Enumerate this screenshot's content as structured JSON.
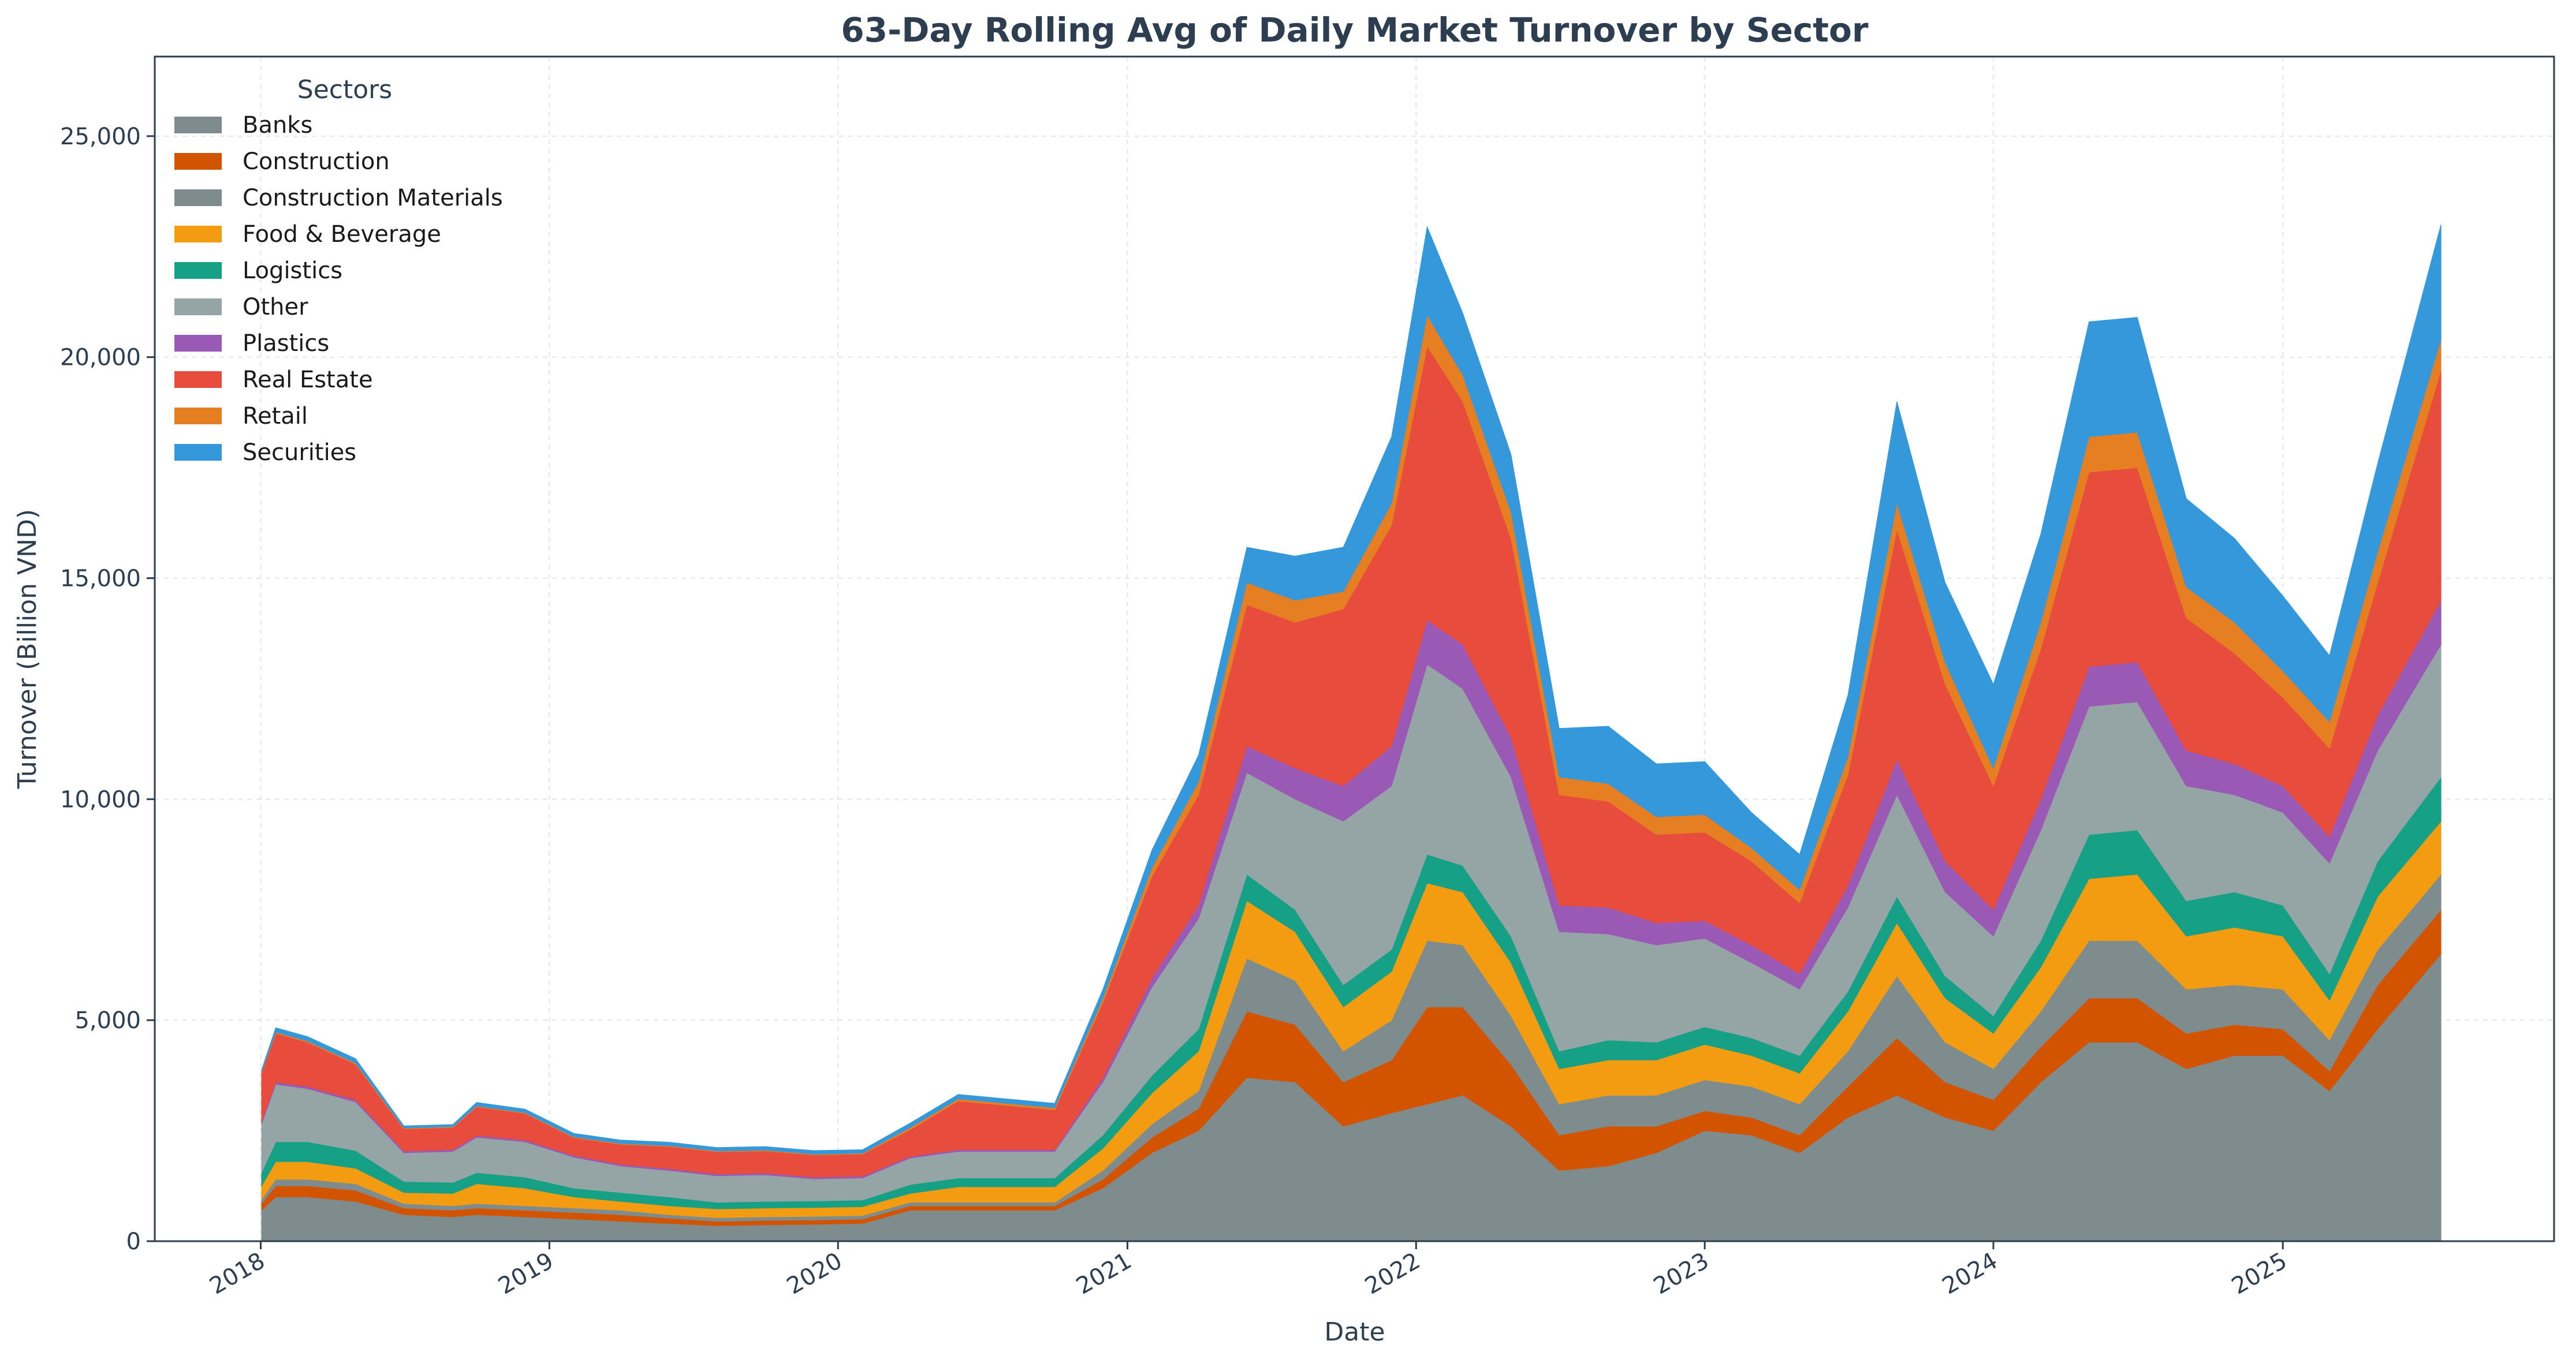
{
  "chart_data": {
    "type": "area",
    "stacked": true,
    "title": "63-Day Rolling Avg of Daily Market Turnover by Sector",
    "xlabel": "Date",
    "ylabel": "Turnover (Billion VND)",
    "xlim": [
      "2017-08-20",
      "2025-12-10"
    ],
    "ylim": [
      0,
      26800
    ],
    "x_ticks": [
      "2018",
      "2019",
      "2020",
      "2021",
      "2022",
      "2023",
      "2024",
      "2025"
    ],
    "y_ticks": [
      "0",
      "5,000",
      "10,000",
      "15,000",
      "20,000",
      "25,000"
    ],
    "y_tick_values": [
      0,
      5000,
      10000,
      15000,
      20000,
      25000
    ],
    "grid": true,
    "legend": {
      "title": "Sectors",
      "placement": "top-left"
    },
    "x": [
      "2018-01-02",
      "2018-01-20",
      "2018-03-01",
      "2018-05-01",
      "2018-07-01",
      "2018-09-01",
      "2018-10-01",
      "2018-12-01",
      "2019-02-01",
      "2019-04-01",
      "2019-06-01",
      "2019-08-01",
      "2019-10-01",
      "2019-12-01",
      "2020-02-01",
      "2020-04-01",
      "2020-06-01",
      "2020-08-01",
      "2020-10-01",
      "2020-12-01",
      "2021-02-01",
      "2021-04-01",
      "2021-06-01",
      "2021-08-01",
      "2021-10-01",
      "2021-12-01",
      "2022-01-15",
      "2022-03-01",
      "2022-05-01",
      "2022-07-01",
      "2022-09-01",
      "2022-11-01",
      "2023-01-01",
      "2023-03-01",
      "2023-05-01",
      "2023-07-01",
      "2023-09-01",
      "2023-11-01",
      "2024-01-01",
      "2024-03-01",
      "2024-05-01",
      "2024-07-01",
      "2024-09-01",
      "2024-11-01",
      "2025-01-01",
      "2025-03-01",
      "2025-05-01",
      "2025-07-20"
    ],
    "series": [
      {
        "name": "Banks",
        "color": "#7f8c8d",
        "values": [
          700,
          1000,
          1000,
          900,
          600,
          550,
          600,
          550,
          500,
          450,
          400,
          350,
          370,
          380,
          400,
          700,
          700,
          700,
          700,
          1200,
          2000,
          2500,
          3700,
          3600,
          2600,
          2900,
          3100,
          3300,
          2600,
          1600,
          1700,
          2000,
          2500,
          2400,
          2000,
          2800,
          3300,
          2800,
          2500,
          3600,
          4500,
          4500,
          3900,
          4200,
          4200,
          3400,
          4800,
          6500
        ]
      },
      {
        "name": "Construction",
        "color": "#d35400",
        "values": [
          150,
          250,
          250,
          250,
          150,
          150,
          150,
          150,
          150,
          150,
          120,
          100,
          100,
          100,
          100,
          100,
          100,
          100,
          100,
          200,
          350,
          500,
          1500,
          1300,
          1000,
          1200,
          2200,
          2000,
          1400,
          800,
          900,
          600,
          450,
          400,
          400,
          700,
          1300,
          800,
          700,
          800,
          1000,
          1000,
          800,
          700,
          600,
          450,
          1000,
          1000
        ]
      },
      {
        "name": "Construction Materials",
        "color": "#7f8c8d",
        "values": [
          100,
          150,
          150,
          150,
          100,
          100,
          100,
          100,
          100,
          100,
          80,
          80,
          80,
          80,
          80,
          80,
          80,
          80,
          80,
          200,
          300,
          400,
          1200,
          1000,
          700,
          900,
          1500,
          1400,
          1100,
          700,
          700,
          700,
          700,
          700,
          700,
          800,
          1400,
          900,
          700,
          800,
          1300,
          1300,
          1000,
          900,
          900,
          700,
          800,
          800
        ]
      },
      {
        "name": "Food & Beverage",
        "color": "#f39c12",
        "values": [
          300,
          400,
          400,
          350,
          250,
          280,
          450,
          400,
          250,
          200,
          200,
          200,
          200,
          200,
          200,
          200,
          350,
          350,
          350,
          500,
          700,
          900,
          1300,
          1100,
          1000,
          1100,
          1300,
          1200,
          1200,
          800,
          800,
          800,
          800,
          700,
          700,
          900,
          1200,
          1000,
          800,
          1000,
          1400,
          1500,
          1200,
          1300,
          1200,
          900,
          1200,
          1200
        ]
      },
      {
        "name": "Logistics",
        "color": "#16a085",
        "values": [
          300,
          450,
          450,
          400,
          250,
          250,
          250,
          250,
          200,
          200,
          200,
          150,
          150,
          150,
          150,
          200,
          200,
          200,
          200,
          300,
          400,
          500,
          600,
          500,
          500,
          500,
          650,
          600,
          600,
          400,
          450,
          400,
          400,
          400,
          400,
          450,
          600,
          500,
          400,
          600,
          1000,
          1000,
          800,
          800,
          700,
          600,
          800,
          1000
        ]
      },
      {
        "name": "Other",
        "color": "#95a5a6",
        "values": [
          1100,
          1300,
          1200,
          1100,
          650,
          700,
          800,
          800,
          700,
          600,
          600,
          600,
          600,
          500,
          500,
          600,
          600,
          600,
          600,
          1200,
          2000,
          2500,
          2300,
          2500,
          3700,
          3700,
          4300,
          4000,
          3600,
          2700,
          2400,
          2200,
          2000,
          1700,
          1500,
          1900,
          2300,
          1900,
          1800,
          2500,
          2900,
          2900,
          2600,
          2200,
          2100,
          2500,
          2500,
          3000
        ]
      },
      {
        "name": "Plastics",
        "color": "#9b59b6",
        "values": [
          50,
          50,
          50,
          50,
          40,
          40,
          40,
          40,
          40,
          40,
          40,
          40,
          40,
          40,
          40,
          40,
          40,
          40,
          40,
          100,
          200,
          300,
          600,
          700,
          800,
          900,
          1000,
          1000,
          900,
          600,
          600,
          500,
          400,
          400,
          350,
          500,
          800,
          700,
          600,
          700,
          900,
          900,
          800,
          700,
          600,
          600,
          800,
          1000
        ]
      },
      {
        "name": "Real Estate",
        "color": "#e74c3c",
        "values": [
          1100,
          1100,
          1000,
          800,
          500,
          500,
          650,
          600,
          400,
          450,
          500,
          500,
          500,
          500,
          500,
          600,
          1100,
          1000,
          900,
          1700,
          2300,
          2500,
          3200,
          3300,
          4000,
          5000,
          6200,
          5500,
          4500,
          2500,
          2400,
          2000,
          2000,
          1900,
          1600,
          2500,
          5200,
          4000,
          2800,
          3400,
          4400,
          4400,
          3000,
          2500,
          2000,
          2000,
          3000,
          5200
        ]
      },
      {
        "name": "Retail",
        "color": "#e67e22",
        "values": [
          20,
          30,
          30,
          30,
          20,
          20,
          20,
          20,
          20,
          20,
          20,
          20,
          20,
          20,
          20,
          50,
          50,
          50,
          50,
          100,
          200,
          300,
          500,
          500,
          400,
          500,
          700,
          600,
          600,
          400,
          400,
          400,
          400,
          300,
          300,
          400,
          600,
          500,
          400,
          600,
          800,
          800,
          700,
          700,
          600,
          600,
          700,
          700
        ]
      },
      {
        "name": "Securities",
        "color": "#3498db",
        "values": [
          50,
          100,
          100,
          100,
          50,
          50,
          80,
          80,
          80,
          80,
          80,
          80,
          80,
          80,
          80,
          100,
          100,
          100,
          100,
          200,
          400,
          600,
          800,
          1000,
          1000,
          1500,
          2000,
          1400,
          1300,
          1100,
          1300,
          1200,
          1200,
          800,
          800,
          1400,
          2300,
          1800,
          1900,
          2000,
          2600,
          2600,
          2000,
          1900,
          1700,
          1500,
          2000,
          2600
        ]
      }
    ]
  }
}
